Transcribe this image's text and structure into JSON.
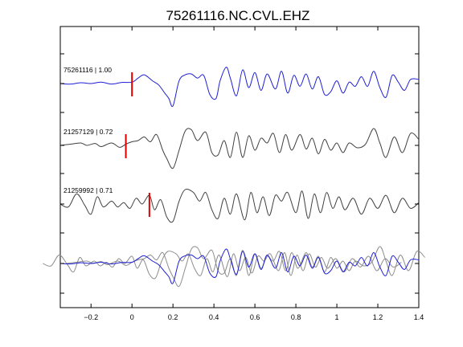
{
  "chart_data": {
    "type": "line",
    "title": "75261116.NC.CVL.EHZ",
    "xlabel": "",
    "ylabel": "",
    "xlim": [
      -0.35,
      1.4
    ],
    "xticks": [
      -0.2,
      0,
      0.2,
      0.4,
      0.6,
      0.8,
      1,
      1.2,
      1.4
    ],
    "xtick_labels": [
      "−0.2",
      "0",
      "0.2",
      "0.4",
      "0.6",
      "0.8",
      "1",
      "1.2",
      "1.4"
    ],
    "grid": false,
    "legend": "none",
    "colors": {
      "master": "#1f1fd6",
      "correlated": "#404040",
      "overlay": "#8c8c8c",
      "pick": "#e00000",
      "axis": "#000000"
    },
    "series": [
      {
        "label": "75261116 | 1.00",
        "pick_time": 0.0,
        "color": "master",
        "samples": [
          [
            -0.35,
            0.0
          ],
          [
            -0.3,
            -0.02
          ],
          [
            -0.25,
            0.03
          ],
          [
            -0.2,
            0.0
          ],
          [
            -0.15,
            0.05
          ],
          [
            -0.1,
            -0.02
          ],
          [
            -0.05,
            0.04
          ],
          [
            0.0,
            0.05
          ],
          [
            0.03,
            0.2
          ],
          [
            0.06,
            0.32
          ],
          [
            0.1,
            0.1
          ],
          [
            0.13,
            -0.05
          ],
          [
            0.16,
            -0.35
          ],
          [
            0.18,
            -0.55
          ],
          [
            0.2,
            -0.82
          ],
          [
            0.23,
            0.1
          ],
          [
            0.26,
            0.32
          ],
          [
            0.29,
            0.35
          ],
          [
            0.32,
            0.2
          ],
          [
            0.35,
            0.3
          ],
          [
            0.38,
            -0.4
          ],
          [
            0.41,
            -0.55
          ],
          [
            0.43,
            0.1
          ],
          [
            0.46,
            0.6
          ],
          [
            0.48,
            0.2
          ],
          [
            0.51,
            -0.45
          ],
          [
            0.54,
            0.5
          ],
          [
            0.57,
            -0.15
          ],
          [
            0.6,
            0.4
          ],
          [
            0.63,
            -0.25
          ],
          [
            0.66,
            0.35
          ],
          [
            0.7,
            -0.2
          ],
          [
            0.73,
            0.45
          ],
          [
            0.76,
            -0.35
          ],
          [
            0.79,
            0.3
          ],
          [
            0.82,
            -0.1
          ],
          [
            0.85,
            0.35
          ],
          [
            0.88,
            -0.2
          ],
          [
            0.91,
            0.25
          ],
          [
            0.94,
            -0.4
          ],
          [
            0.97,
            -0.3
          ],
          [
            1.0,
            0.1
          ],
          [
            1.03,
            -0.35
          ],
          [
            1.06,
            0.05
          ],
          [
            1.09,
            -0.1
          ],
          [
            1.12,
            0.25
          ],
          [
            1.15,
            -0.1
          ],
          [
            1.18,
            0.45
          ],
          [
            1.21,
            -0.15
          ],
          [
            1.24,
            -0.5
          ],
          [
            1.27,
            0.3
          ],
          [
            1.3,
            0.05
          ],
          [
            1.33,
            -0.25
          ],
          [
            1.36,
            0.15
          ],
          [
            1.4,
            0.15
          ]
        ]
      },
      {
        "label": "21257129 | 0.72",
        "pick_time": -0.03,
        "color": "correlated",
        "samples": [
          [
            -0.35,
            0.0
          ],
          [
            -0.3,
            0.05
          ],
          [
            -0.25,
            0.1
          ],
          [
            -0.22,
            0.0
          ],
          [
            -0.18,
            0.08
          ],
          [
            -0.15,
            -0.05
          ],
          [
            -0.1,
            0.1
          ],
          [
            -0.06,
            -0.08
          ],
          [
            -0.03,
            0.05
          ],
          [
            0.0,
            0.15
          ],
          [
            0.03,
            0.2
          ],
          [
            0.06,
            0.35
          ],
          [
            0.09,
            0.15
          ],
          [
            0.12,
            0.45
          ],
          [
            0.15,
            -0.2
          ],
          [
            0.17,
            -0.55
          ],
          [
            0.2,
            -0.95
          ],
          [
            0.23,
            -0.2
          ],
          [
            0.26,
            0.6
          ],
          [
            0.29,
            0.65
          ],
          [
            0.32,
            0.2
          ],
          [
            0.36,
            0.55
          ],
          [
            0.39,
            -0.3
          ],
          [
            0.42,
            -0.4
          ],
          [
            0.45,
            0.2
          ],
          [
            0.48,
            -0.5
          ],
          [
            0.51,
            0.55
          ],
          [
            0.54,
            -0.5
          ],
          [
            0.57,
            0.4
          ],
          [
            0.6,
            -0.2
          ],
          [
            0.63,
            0.3
          ],
          [
            0.66,
            0.1
          ],
          [
            0.69,
            0.5
          ],
          [
            0.72,
            -0.3
          ],
          [
            0.75,
            0.45
          ],
          [
            0.78,
            -0.2
          ],
          [
            0.82,
            0.45
          ],
          [
            0.85,
            -0.15
          ],
          [
            0.88,
            0.3
          ],
          [
            0.91,
            -0.35
          ],
          [
            0.94,
            0.25
          ],
          [
            0.97,
            -0.2
          ],
          [
            1.0,
            0.1
          ],
          [
            1.03,
            -0.3
          ],
          [
            1.06,
            0.1
          ],
          [
            1.1,
            -0.1
          ],
          [
            1.14,
            0.05
          ],
          [
            1.18,
            0.7
          ],
          [
            1.21,
            0.1
          ],
          [
            1.24,
            -0.5
          ],
          [
            1.28,
            0.35
          ],
          [
            1.32,
            -0.3
          ],
          [
            1.36,
            0.5
          ],
          [
            1.4,
            0.25
          ]
        ]
      },
      {
        "label": "21259992 | 0.71",
        "pick_time": 0.085,
        "color": "correlated",
        "samples": [
          [
            -0.35,
            0.0
          ],
          [
            -0.31,
            -0.1
          ],
          [
            -0.27,
            0.35
          ],
          [
            -0.23,
            -0.05
          ],
          [
            -0.2,
            -0.35
          ],
          [
            -0.17,
            0.25
          ],
          [
            -0.14,
            -0.1
          ],
          [
            -0.1,
            0.1
          ],
          [
            -0.07,
            -0.1
          ],
          [
            -0.04,
            0.05
          ],
          [
            -0.01,
            -0.15
          ],
          [
            0.02,
            0.2
          ],
          [
            0.05,
            0.0
          ],
          [
            0.085,
            0.3
          ],
          [
            0.11,
            -0.2
          ],
          [
            0.14,
            0.15
          ],
          [
            0.17,
            -0.45
          ],
          [
            0.2,
            -0.6
          ],
          [
            0.23,
            0.1
          ],
          [
            0.26,
            0.5
          ],
          [
            0.3,
            0.4
          ],
          [
            0.33,
            0.1
          ],
          [
            0.36,
            0.4
          ],
          [
            0.39,
            -0.2
          ],
          [
            0.42,
            -0.5
          ],
          [
            0.45,
            0.2
          ],
          [
            0.48,
            -0.35
          ],
          [
            0.51,
            0.35
          ],
          [
            0.55,
            -0.55
          ],
          [
            0.58,
            0.4
          ],
          [
            0.61,
            -0.3
          ],
          [
            0.64,
            0.25
          ],
          [
            0.67,
            -0.4
          ],
          [
            0.7,
            0.3
          ],
          [
            0.73,
            0.1
          ],
          [
            0.76,
            0.4
          ],
          [
            0.8,
            -0.3
          ],
          [
            0.83,
            0.45
          ],
          [
            0.86,
            -0.5
          ],
          [
            0.89,
            0.35
          ],
          [
            0.92,
            -0.3
          ],
          [
            0.95,
            0.4
          ],
          [
            0.98,
            -0.15
          ],
          [
            1.01,
            0.25
          ],
          [
            1.04,
            -0.2
          ],
          [
            1.08,
            0.2
          ],
          [
            1.12,
            -0.35
          ],
          [
            1.16,
            0.2
          ],
          [
            1.2,
            -0.15
          ],
          [
            1.24,
            0.3
          ],
          [
            1.28,
            -0.3
          ],
          [
            1.32,
            0.2
          ],
          [
            1.36,
            -0.15
          ],
          [
            1.4,
            0.05
          ]
        ]
      }
    ],
    "overlay": {
      "description_label": "",
      "note": "bottom row overlays all three traces aligned on their picks"
    }
  }
}
